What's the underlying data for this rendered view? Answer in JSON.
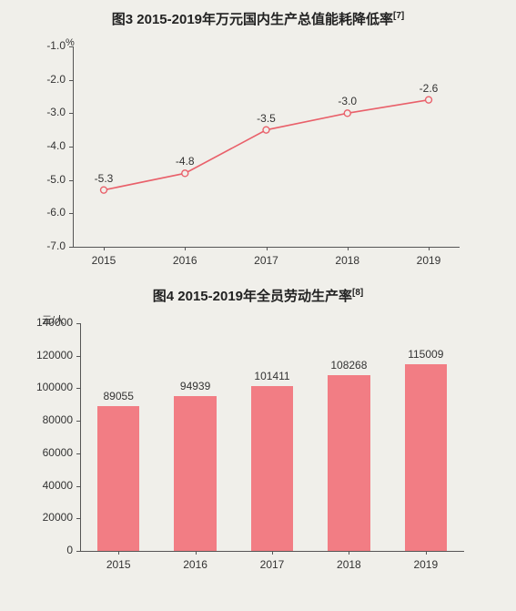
{
  "chart3": {
    "title_prefix": "图3  ",
    "title_main": "2015-2019年万元国内生产总值能耗降低率",
    "title_sup": "[7]",
    "type": "line",
    "y_unit_label": "%",
    "categories": [
      "2015",
      "2016",
      "2017",
      "2018",
      "2019"
    ],
    "values": [
      -5.3,
      -4.8,
      -3.5,
      -3.0,
      -2.6
    ],
    "value_labels": [
      "-5.3",
      "-4.8",
      "-3.5",
      "-3.0",
      "-2.6"
    ],
    "line_color": "#e9606a",
    "marker_fill": "#f0efea",
    "marker_stroke": "#e9606a",
    "marker_radius": 3.5,
    "line_width": 1.6,
    "ylim": [
      -7.0,
      -1.0
    ],
    "yticks": [
      -1.0,
      -2.0,
      -3.0,
      -4.0,
      -5.0,
      -6.0,
      -7.0
    ],
    "ytick_labels": [
      "-1.0",
      "-2.0",
      "-3.0",
      "-4.0",
      "-5.0",
      "-6.0",
      "-7.0"
    ],
    "title_fontsize": 15,
    "label_fontsize": 12,
    "value_fontsize": 12,
    "background_color": "#f0efea",
    "axis_color": "#555555",
    "text_color": "#333333"
  },
  "chart4": {
    "title_prefix": "图4  ",
    "title_main": "2015-2019年全员劳动生产率",
    "title_sup": "[8]",
    "type": "bar",
    "y_unit_label": "元/人",
    "categories": [
      "2015",
      "2016",
      "2017",
      "2018",
      "2019"
    ],
    "values": [
      89055,
      94939,
      101411,
      108268,
      115009
    ],
    "value_labels": [
      "89055",
      "94939",
      "101411",
      "108268",
      "115009"
    ],
    "bar_color": "#f27d84",
    "bar_width_ratio": 0.55,
    "ylim": [
      0,
      140000
    ],
    "yticks": [
      0,
      20000,
      40000,
      60000,
      80000,
      100000,
      120000,
      140000
    ],
    "ytick_labels": [
      "0",
      "20000",
      "40000",
      "60000",
      "80000",
      "100000",
      "120000",
      "140000"
    ],
    "title_fontsize": 15,
    "label_fontsize": 12,
    "value_fontsize": 12,
    "background_color": "#f0efea",
    "axis_color": "#555555",
    "grid_color": "rgba(0,0,0,0.06)",
    "text_color": "#333333"
  }
}
